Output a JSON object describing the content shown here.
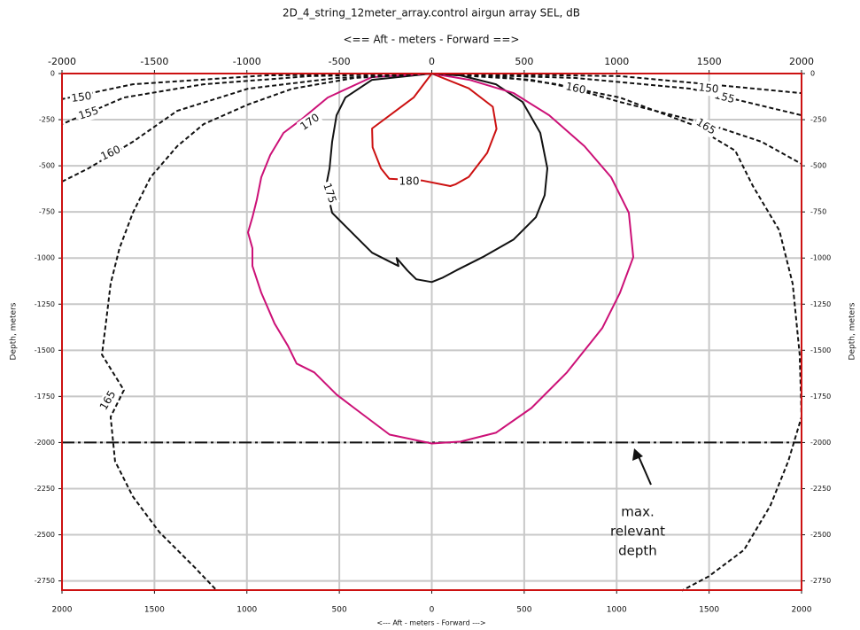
{
  "chart_data": {
    "type": "contour",
    "title": "2D_4_string_12meter_array.control airgun array SEL, dB",
    "top_axis_label": "<==  Aft  - meters - Forward ==>",
    "x_label": "<---  Aft  - meters - Forward --->",
    "y_label": "Depth, meters",
    "xlim": [
      -2000,
      2000
    ],
    "xticks": [
      -2000,
      -1500,
      -1000,
      -500,
      0,
      500,
      1000,
      1500,
      2000
    ],
    "x2ticks": [
      {
        "value": -2000,
        "label": "2000"
      },
      {
        "value": -1500,
        "label": "1500"
      },
      {
        "value": -1000,
        "label": "1000"
      },
      {
        "value": -500,
        "label": "500"
      },
      0,
      500,
      1000,
      1500,
      2000
    ],
    "ylim": [
      -2800,
      0
    ],
    "yticks": [
      0,
      -250,
      -500,
      -750,
      -1000,
      -1250,
      -1500,
      -1750,
      -2000,
      -2250,
      -2500,
      -2750
    ],
    "grid": true,
    "series": [
      {
        "level": 180,
        "color": "#cc1111",
        "dashed": false,
        "x": [
          0,
          -98,
          -323,
          -320,
          -275,
          -230,
          -50,
          100,
          130,
          200,
          300,
          350,
          330,
          200,
          0
        ],
        "y": [
          0,
          -130,
          -298,
          -400,
          -514,
          -570,
          -580,
          -610,
          -600,
          -560,
          -430,
          -300,
          -180,
          -80,
          0
        ]
      },
      {
        "level": 175,
        "color": "#111111",
        "dashed": false,
        "x": [
          0,
          -323,
          -467,
          -515,
          -539,
          -553,
          -572,
          -539,
          -467,
          -395,
          -323,
          -228,
          -180,
          -190,
          -132,
          -84,
          0,
          60,
          132,
          275,
          443,
          563,
          611,
          625,
          587,
          491,
          347,
          156,
          0
        ],
        "y": [
          0,
          -34,
          -130,
          -226,
          -370,
          -514,
          -611,
          -755,
          -827,
          -899,
          -971,
          -1019,
          -1043,
          -1000,
          -1067,
          -1115,
          -1130,
          -1106,
          -1067,
          -995,
          -899,
          -779,
          -659,
          -514,
          -322,
          -154,
          -58,
          -10,
          0
        ]
      },
      {
        "level": 170,
        "color": "#cc1177",
        "dashed": false,
        "x": [
          0,
          -323,
          -563,
          -707,
          -802,
          -874,
          -922,
          -946,
          -970,
          -994,
          -970,
          -970,
          -922,
          -850,
          -778,
          -731,
          -635,
          -515,
          -419,
          -228,
          0,
          156,
          347,
          539,
          731,
          922,
          1018,
          1090,
          1066,
          970,
          826,
          635,
          443,
          204,
          0
        ],
        "y": [
          0,
          -19,
          -130,
          -250,
          -322,
          -442,
          -562,
          -683,
          -779,
          -861,
          -947,
          -1043,
          -1188,
          -1356,
          -1476,
          -1572,
          -1620,
          -1740,
          -1813,
          -1957,
          -2005,
          -1995,
          -1947,
          -1813,
          -1620,
          -1380,
          -1188,
          -995,
          -755,
          -562,
          -394,
          -226,
          -106,
          -34,
          0
        ]
      },
      {
        "level": 165,
        "color": "#111111",
        "dashed": true,
        "x": [
          0,
          -419,
          -754,
          -994,
          -1234,
          -1377,
          -1521,
          -1617,
          -1689,
          -1737,
          -1760,
          -1784,
          -1665,
          -1737,
          -1713,
          -1617,
          -1473,
          -1281,
          -1162
        ],
        "y": [
          0,
          -24,
          -82,
          -168,
          -274,
          -394,
          -562,
          -755,
          -947,
          -1139,
          -1332,
          -1524,
          -1716,
          -1861,
          -2101,
          -2293,
          -2486,
          -2678,
          -2803
        ]
      },
      {
        "level": 165,
        "color": "#111111",
        "dashed": true,
        "x": [
          0,
          539,
          1018,
          1401,
          1641,
          1737,
          1880,
          1952,
          1990,
          2000,
          1928,
          1832,
          1689,
          1497,
          1353
        ],
        "y": [
          0,
          -34,
          -130,
          -274,
          -418,
          -610,
          -850,
          -1139,
          -1524,
          -1861,
          -2101,
          -2341,
          -2582,
          -2726,
          -2803
        ]
      },
      {
        "level": 160,
        "color": "#111111",
        "dashed": true,
        "x": [
          0,
          -515,
          -994,
          -1377,
          -1617,
          -1857,
          -2000
        ],
        "y": [
          0,
          -24,
          -82,
          -202,
          -370,
          -514,
          -586
        ]
      },
      {
        "level": 160,
        "color": "#111111",
        "dashed": true,
        "x": [
          0,
          347,
          683,
          1018,
          1497,
          1784,
          2000
        ],
        "y": [
          0,
          -14,
          -58,
          -154,
          -274,
          -370,
          -490
        ]
      },
      {
        "level": 155,
        "color": "#111111",
        "dashed": true,
        "x": [
          0,
          -659,
          -1234,
          -1665,
          -2000
        ],
        "y": [
          0,
          -14,
          -58,
          -130,
          -274
        ]
      },
      {
        "level": 155,
        "color": "#111111",
        "dashed": true,
        "x": [
          0,
          779,
          1401,
          2000
        ],
        "y": [
          0,
          -24,
          -82,
          -226
        ]
      },
      {
        "level": 150,
        "color": "#111111",
        "dashed": true,
        "x": [
          0,
          -899,
          -1617,
          -2000
        ],
        "y": [
          0,
          -10,
          -58,
          -139
        ]
      },
      {
        "level": 150,
        "color": "#111111",
        "dashed": true,
        "x": [
          0,
          1018,
          1497,
          2000
        ],
        "y": [
          0,
          -14,
          -58,
          -106
        ]
      }
    ],
    "reference_line": {
      "value": -2000
    },
    "annotation": [
      "max.",
      "relevant",
      "depth"
    ]
  }
}
